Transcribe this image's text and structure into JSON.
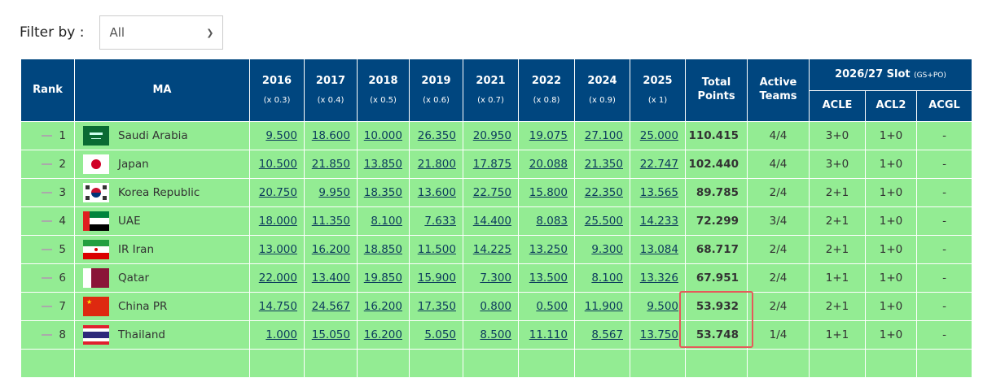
{
  "filter": {
    "label": "Filter by :",
    "selected": "All"
  },
  "header": {
    "rank": "Rank",
    "ma": "MA",
    "years": [
      {
        "year": "2016",
        "mult": "(x 0.3)"
      },
      {
        "year": "2017",
        "mult": "(x 0.4)"
      },
      {
        "year": "2018",
        "mult": "(x 0.5)"
      },
      {
        "year": "2019",
        "mult": "(x 0.6)"
      },
      {
        "year": "2021",
        "mult": "(x 0.7)"
      },
      {
        "year": "2022",
        "mult": "(x 0.8)"
      },
      {
        "year": "2024",
        "mult": "(x 0.9)"
      },
      {
        "year": "2025",
        "mult": "(x 1)"
      }
    ],
    "total": "Total Points",
    "active": "Active Teams",
    "slot": "2026/27 Slot",
    "slot_note": "(GS+PO)",
    "acle": "ACLE",
    "acl2": "ACL2",
    "acgl": "ACGL"
  },
  "rows": [
    {
      "rank": "1",
      "ma": "Saudi Arabia",
      "flag": "saudi-arabia",
      "pts": [
        "9.500",
        "18.600",
        "10.000",
        "26.350",
        "20.950",
        "19.075",
        "27.100",
        "25.000"
      ],
      "total": "110.415",
      "active": "4/4",
      "acle": "3+0",
      "acl2": "1+0",
      "acgl": "-"
    },
    {
      "rank": "2",
      "ma": "Japan",
      "flag": "japan",
      "pts": [
        "10.500",
        "21.850",
        "13.850",
        "21.800",
        "17.875",
        "20.088",
        "21.350",
        "22.747"
      ],
      "total": "102.440",
      "active": "4/4",
      "acle": "3+0",
      "acl2": "1+0",
      "acgl": "-"
    },
    {
      "rank": "3",
      "ma": "Korea Republic",
      "flag": "korea",
      "pts": [
        "20.750",
        "9.950",
        "18.350",
        "13.600",
        "22.750",
        "15.800",
        "22.350",
        "13.565"
      ],
      "total": "89.785",
      "active": "2/4",
      "acle": "2+1",
      "acl2": "1+0",
      "acgl": "-"
    },
    {
      "rank": "4",
      "ma": "UAE",
      "flag": "uae",
      "pts": [
        "18.000",
        "11.350",
        "8.100",
        "7.633",
        "14.400",
        "8.083",
        "25.500",
        "14.233"
      ],
      "total": "72.299",
      "active": "3/4",
      "acle": "2+1",
      "acl2": "1+0",
      "acgl": "-"
    },
    {
      "rank": "5",
      "ma": "IR Iran",
      "flag": "iran",
      "pts": [
        "13.000",
        "16.200",
        "18.850",
        "11.500",
        "14.225",
        "13.250",
        "9.300",
        "13.084"
      ],
      "total": "68.717",
      "active": "2/4",
      "acle": "2+1",
      "acl2": "1+0",
      "acgl": "-"
    },
    {
      "rank": "6",
      "ma": "Qatar",
      "flag": "qatar",
      "pts": [
        "22.000",
        "13.400",
        "19.850",
        "15.900",
        "7.300",
        "13.500",
        "8.100",
        "13.326"
      ],
      "total": "67.951",
      "active": "2/4",
      "acle": "1+1",
      "acl2": "1+0",
      "acgl": "-"
    },
    {
      "rank": "7",
      "ma": "China PR",
      "flag": "china",
      "pts": [
        "14.750",
        "24.567",
        "16.200",
        "17.350",
        "0.800",
        "0.500",
        "11.900",
        "9.500"
      ],
      "total": "53.932",
      "active": "2/4",
      "acle": "2+1",
      "acl2": "1+0",
      "acgl": "-"
    },
    {
      "rank": "8",
      "ma": "Thailand",
      "flag": "thailand",
      "pts": [
        "1.000",
        "15.050",
        "16.200",
        "5.050",
        "8.500",
        "11.110",
        "8.567",
        "13.750"
      ],
      "total": "53.748",
      "active": "1/4",
      "acle": "1+1",
      "acl2": "1+0",
      "acgl": "-"
    }
  ],
  "colors": {
    "header": "#00467f",
    "row": "#93ec93",
    "highlight": "#e55a5a"
  }
}
